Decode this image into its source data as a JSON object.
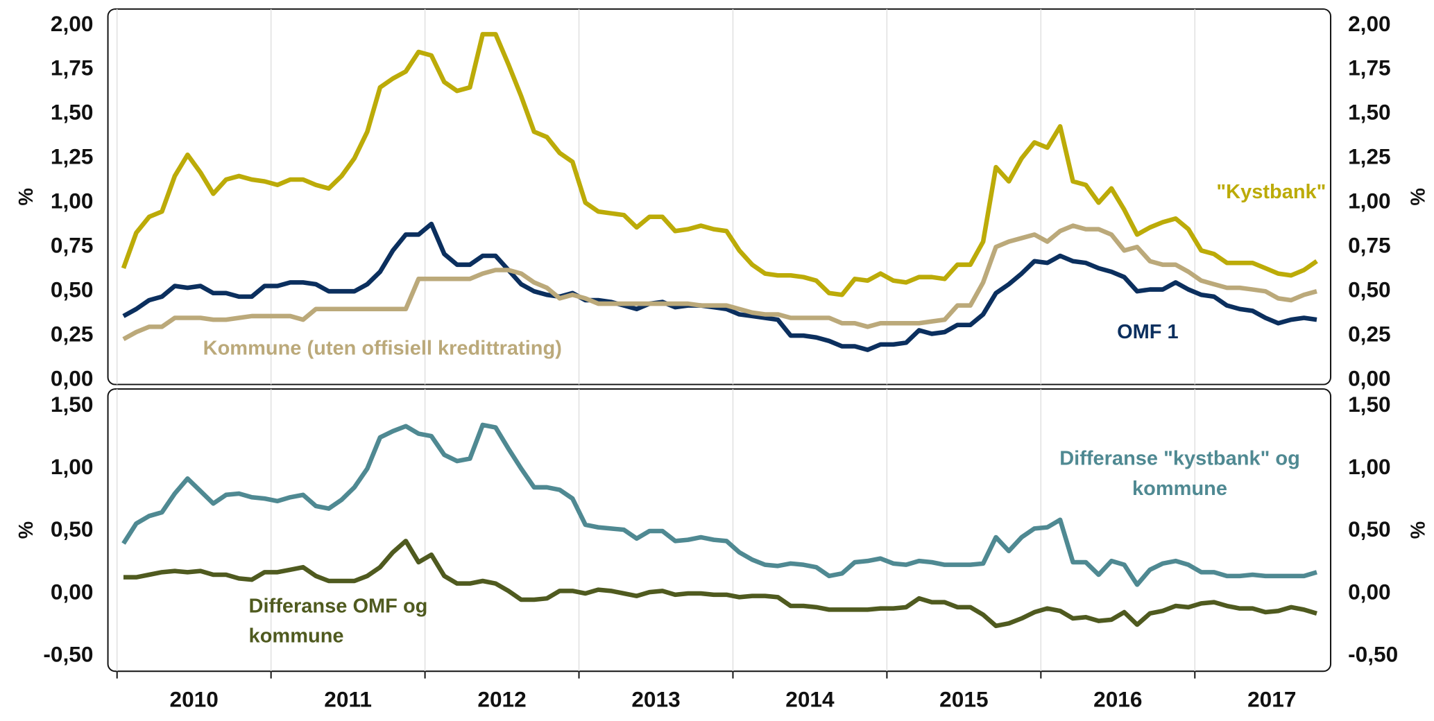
{
  "chart_data": [
    {
      "type": "line",
      "ylabel": "%",
      "ylim": [
        0,
        2
      ],
      "yticks": [
        {
          "value": 0,
          "label": "0,00"
        },
        {
          "value": 0.25,
          "label": "0,25"
        },
        {
          "value": 0.5,
          "label": "0,50"
        },
        {
          "value": 0.75,
          "label": "0,75"
        },
        {
          "value": 1,
          "label": "1,00"
        },
        {
          "value": 1.25,
          "label": "1,25"
        },
        {
          "value": 1.5,
          "label": "1,50"
        },
        {
          "value": 1.75,
          "label": "1,75"
        },
        {
          "value": 2,
          "label": "2,00"
        }
      ],
      "series": [
        {
          "name": "\"Kystbank\"",
          "color": "#bcab08",
          "values": [
            0.63,
            0.83,
            0.92,
            0.95,
            1.15,
            1.27,
            1.17,
            1.05,
            1.13,
            1.15,
            1.13,
            1.12,
            1.1,
            1.13,
            1.13,
            1.1,
            1.08,
            1.15,
            1.25,
            1.4,
            1.65,
            1.7,
            1.74,
            1.85,
            1.83,
            1.68,
            1.63,
            1.65,
            1.95,
            1.95,
            1.78,
            1.6,
            1.4,
            1.37,
            1.28,
            1.23,
            1.0,
            0.95,
            0.94,
            0.93,
            0.86,
            0.92,
            0.92,
            0.84,
            0.85,
            0.87,
            0.85,
            0.84,
            0.73,
            0.65,
            0.6,
            0.59,
            0.59,
            0.58,
            0.56,
            0.49,
            0.48,
            0.57,
            0.56,
            0.6,
            0.56,
            0.55,
            0.58,
            0.58,
            0.57,
            0.65,
            0.65,
            0.78,
            1.2,
            1.12,
            1.25,
            1.34,
            1.31,
            1.43,
            1.12,
            1.1,
            1.0,
            1.08,
            0.96,
            0.82,
            0.86,
            0.89,
            0.91,
            0.85,
            0.73,
            0.71,
            0.66,
            0.66,
            0.66,
            0.63,
            0.6,
            0.59,
            0.62,
            0.67
          ]
        },
        {
          "name": "OMF 1",
          "color": "#0b2f5e",
          "values": [
            0.36,
            0.4,
            0.45,
            0.47,
            0.53,
            0.52,
            0.53,
            0.49,
            0.49,
            0.47,
            0.47,
            0.53,
            0.53,
            0.55,
            0.55,
            0.54,
            0.5,
            0.5,
            0.5,
            0.54,
            0.61,
            0.73,
            0.82,
            0.82,
            0.88,
            0.71,
            0.65,
            0.65,
            0.7,
            0.7,
            0.62,
            0.54,
            0.5,
            0.48,
            0.47,
            0.49,
            0.45,
            0.45,
            0.44,
            0.42,
            0.4,
            0.43,
            0.44,
            0.41,
            0.42,
            0.42,
            0.41,
            0.4,
            0.37,
            0.36,
            0.35,
            0.34,
            0.25,
            0.25,
            0.24,
            0.22,
            0.19,
            0.19,
            0.17,
            0.2,
            0.2,
            0.21,
            0.28,
            0.26,
            0.27,
            0.31,
            0.31,
            0.37,
            0.49,
            0.54,
            0.6,
            0.67,
            0.66,
            0.7,
            0.67,
            0.66,
            0.63,
            0.61,
            0.58,
            0.5,
            0.51,
            0.51,
            0.55,
            0.51,
            0.48,
            0.47,
            0.42,
            0.4,
            0.39,
            0.35,
            0.32,
            0.34,
            0.35,
            0.34
          ]
        },
        {
          "name": "Kommune (uten offisiell kredittrating)",
          "color": "#bba97a",
          "values": [
            0.23,
            0.27,
            0.3,
            0.3,
            0.35,
            0.35,
            0.35,
            0.34,
            0.34,
            0.35,
            0.36,
            0.36,
            0.36,
            0.36,
            0.34,
            0.4,
            0.4,
            0.4,
            0.4,
            0.4,
            0.4,
            0.4,
            0.4,
            0.57,
            0.57,
            0.57,
            0.57,
            0.57,
            0.6,
            0.62,
            0.62,
            0.6,
            0.55,
            0.52,
            0.46,
            0.48,
            0.46,
            0.43,
            0.43,
            0.43,
            0.43,
            0.43,
            0.43,
            0.43,
            0.43,
            0.42,
            0.42,
            0.42,
            0.4,
            0.38,
            0.37,
            0.37,
            0.35,
            0.35,
            0.35,
            0.35,
            0.32,
            0.32,
            0.3,
            0.32,
            0.32,
            0.32,
            0.32,
            0.33,
            0.34,
            0.42,
            0.42,
            0.55,
            0.75,
            0.78,
            0.8,
            0.82,
            0.78,
            0.84,
            0.87,
            0.85,
            0.85,
            0.82,
            0.73,
            0.75,
            0.67,
            0.65,
            0.65,
            0.61,
            0.56,
            0.54,
            0.52,
            0.52,
            0.51,
            0.5,
            0.46,
            0.45,
            0.48,
            0.5
          ]
        }
      ]
    },
    {
      "type": "line",
      "ylabel": "%",
      "ylim": [
        -0.5,
        1.5
      ],
      "yticks": [
        {
          "value": -0.5,
          "label": "-0,50"
        },
        {
          "value": 0,
          "label": "0,00"
        },
        {
          "value": 0.5,
          "label": "0,50"
        },
        {
          "value": 1,
          "label": "1,00"
        },
        {
          "value": 1.5,
          "label": "1,50"
        }
      ],
      "categories": [
        null,
        null,
        null,
        null,
        null,
        null,
        "2010",
        null,
        null,
        null,
        null,
        null,
        null,
        null,
        null,
        null,
        null,
        null,
        "2011",
        null,
        null,
        null,
        null,
        null,
        null,
        null,
        null,
        null,
        null,
        null,
        "2012",
        null,
        null,
        null,
        null,
        null,
        null,
        null,
        null,
        null,
        null,
        null,
        "2013",
        null,
        null,
        null,
        null,
        null,
        null,
        null,
        null,
        null,
        null,
        null,
        "2014",
        null,
        null,
        null,
        null,
        null,
        null,
        null,
        null,
        null,
        null,
        null,
        "2015",
        null,
        null,
        null,
        null,
        null,
        null,
        null,
        null,
        null,
        null,
        null,
        "2016",
        null,
        null,
        null,
        null,
        null,
        null,
        null,
        null,
        null,
        null,
        null,
        "2017",
        null,
        null,
        null
      ],
      "series": [
        {
          "name": "Differanse \"kystbank\" og kommune",
          "color": "#4f8992",
          "values": [
            0.4,
            0.56,
            0.62,
            0.65,
            0.8,
            0.92,
            0.82,
            0.72,
            0.79,
            0.8,
            0.77,
            0.76,
            0.74,
            0.77,
            0.79,
            0.7,
            0.68,
            0.75,
            0.85,
            1.0,
            1.25,
            1.3,
            1.34,
            1.28,
            1.26,
            1.11,
            1.06,
            1.08,
            1.35,
            1.33,
            1.16,
            1.0,
            0.85,
            0.85,
            0.83,
            0.76,
            0.55,
            0.53,
            0.52,
            0.51,
            0.44,
            0.5,
            0.5,
            0.42,
            0.43,
            0.45,
            0.43,
            0.42,
            0.33,
            0.27,
            0.23,
            0.22,
            0.24,
            0.23,
            0.21,
            0.14,
            0.16,
            0.25,
            0.26,
            0.28,
            0.24,
            0.23,
            0.26,
            0.25,
            0.23,
            0.23,
            0.23,
            0.24,
            0.45,
            0.34,
            0.45,
            0.52,
            0.53,
            0.59,
            0.25,
            0.25,
            0.15,
            0.26,
            0.23,
            0.07,
            0.19,
            0.24,
            0.26,
            0.23,
            0.17,
            0.17,
            0.14,
            0.14,
            0.15,
            0.14,
            0.14,
            0.14,
            0.14,
            0.17
          ]
        },
        {
          "name": "Differanse OMF og kommune",
          "color": "#4f5a1f",
          "values": [
            0.13,
            0.13,
            0.15,
            0.17,
            0.18,
            0.17,
            0.18,
            0.15,
            0.15,
            0.12,
            0.11,
            0.17,
            0.17,
            0.19,
            0.21,
            0.14,
            0.1,
            0.1,
            0.1,
            0.14,
            0.21,
            0.33,
            0.42,
            0.25,
            0.31,
            0.14,
            0.08,
            0.08,
            0.1,
            0.08,
            0.02,
            -0.05,
            -0.05,
            -0.04,
            0.02,
            0.02,
            0.0,
            0.03,
            0.02,
            0.0,
            -0.02,
            0.01,
            0.02,
            -0.01,
            0.0,
            0.0,
            -0.01,
            -0.01,
            -0.03,
            -0.02,
            -0.02,
            -0.03,
            -0.1,
            -0.1,
            -0.11,
            -0.13,
            -0.13,
            -0.13,
            -0.13,
            -0.12,
            -0.12,
            -0.11,
            -0.04,
            -0.07,
            -0.07,
            -0.11,
            -0.11,
            -0.17,
            -0.26,
            -0.24,
            -0.2,
            -0.15,
            -0.12,
            -0.14,
            -0.2,
            -0.19,
            -0.22,
            -0.21,
            -0.15,
            -0.25,
            -0.16,
            -0.14,
            -0.1,
            -0.11,
            -0.08,
            -0.07,
            -0.1,
            -0.12,
            -0.12,
            -0.15,
            -0.14,
            -0.11,
            -0.13,
            -0.16
          ]
        }
      ]
    }
  ]
}
